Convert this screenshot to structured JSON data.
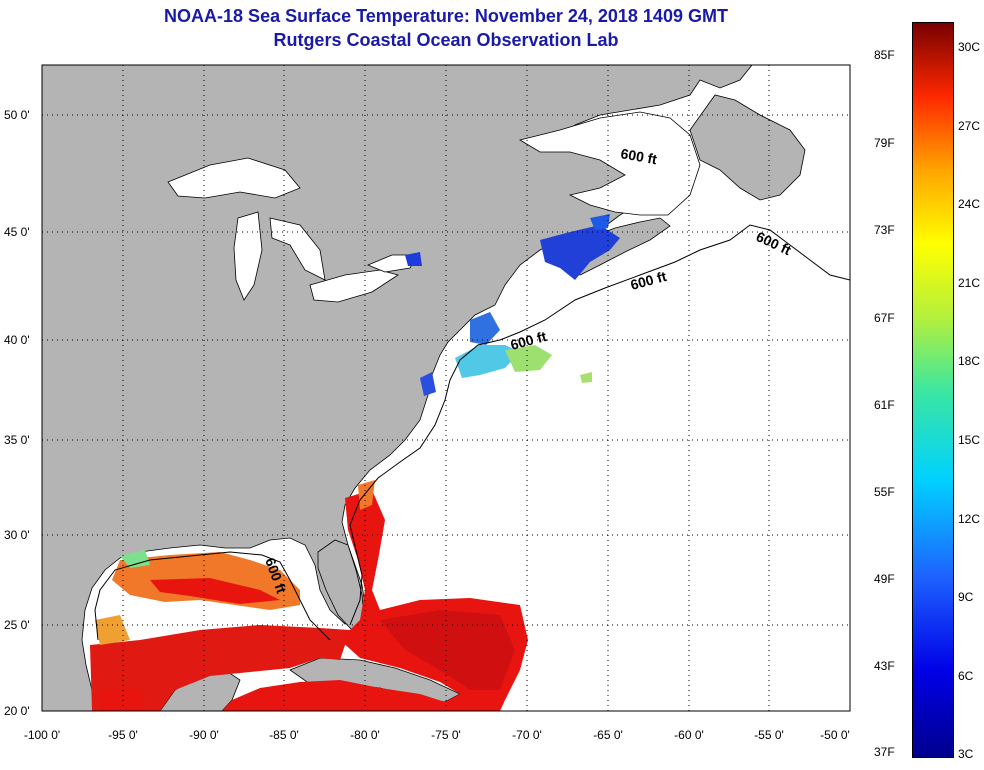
{
  "header": {
    "title": "NOAA-18 Sea Surface Temperature:  November 24, 2018 1409 GMT",
    "subtitle": "Rutgers Coastal Ocean Observation Lab"
  },
  "axes": {
    "lat_labels": [
      "50 0'",
      "45 0'",
      "40 0'",
      "35 0'",
      "30 0'",
      "25 0'",
      "20 0'"
    ],
    "lon_labels": [
      "-100 0'",
      "-95 0'",
      "-90 0'",
      "-85 0'",
      "-80 0'",
      "-75 0'",
      "-70 0'",
      "-65 0'",
      "-60 0'",
      "-55 0'",
      "-50 0'"
    ]
  },
  "contours": {
    "depth_label": "600 ft"
  },
  "colorbar": {
    "fahrenheit": [
      "85F",
      "79F",
      "73F",
      "67F",
      "61F",
      "55F",
      "49F",
      "43F",
      "37F"
    ],
    "celsius": [
      "30C",
      "27C",
      "24C",
      "21C",
      "18C",
      "15C",
      "12C",
      "9C",
      "6C",
      "3C"
    ]
  },
  "colors": {
    "title": "#1a1aa8",
    "land": "#b4b4b4",
    "ocean": "#ffffff",
    "warm": "#e8140e",
    "hot": "#d81010",
    "orange": "#f07828",
    "cold": "#1e3cdc",
    "cyan": "#50c8e6"
  }
}
